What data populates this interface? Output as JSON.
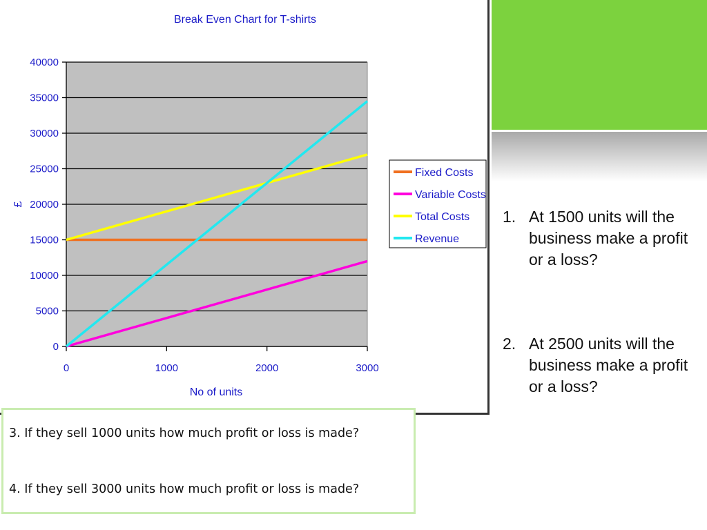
{
  "chart_data": {
    "type": "line",
    "title": "Break Even Chart for T-shirts",
    "xlabel": "No of units",
    "ylabel": "£",
    "xlim": [
      0,
      3000
    ],
    "ylim": [
      0,
      40000
    ],
    "x_ticks": [
      0,
      1000,
      2000,
      3000
    ],
    "y_ticks": [
      0,
      5000,
      10000,
      15000,
      20000,
      25000,
      30000,
      35000,
      40000
    ],
    "grid": true,
    "legend_position": "right",
    "x": [
      0,
      3000
    ],
    "series": [
      {
        "name": "Fixed Costs",
        "values": [
          15000,
          15000
        ],
        "color": "#f07020"
      },
      {
        "name": "Variable Costs",
        "values": [
          0,
          12000
        ],
        "color": "#ff00dd"
      },
      {
        "name": "Total Costs",
        "values": [
          15000,
          27000
        ],
        "color": "#ffff00"
      },
      {
        "name": "Revenue",
        "values": [
          0,
          34500
        ],
        "color": "#22e8f0"
      }
    ]
  },
  "questions": {
    "q1": {
      "number": "1.",
      "text": "At 1500 units will the business make a profit or a loss?"
    },
    "q2": {
      "number": "2.",
      "text": "At 2500 units will the business make a profit or a loss?"
    },
    "q3": "3. If they sell 1000 units how much profit or loss is made?",
    "q4": "4. If they sell 3000 units how much profit or loss is made?"
  },
  "colors": {
    "plot_background": "#c0c0c0",
    "accent_green": "#7cd23e",
    "box_border": "#c9ecb0",
    "chart_text": "#1b1bc8"
  }
}
